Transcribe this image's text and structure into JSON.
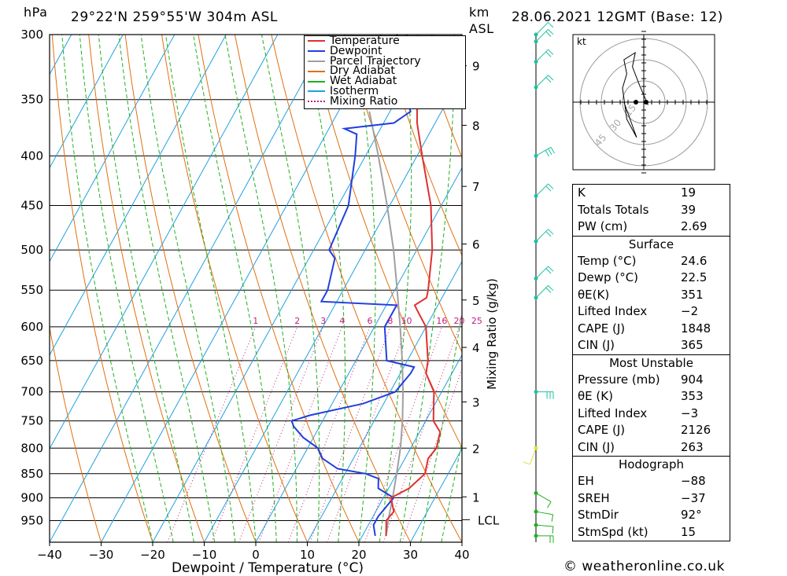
{
  "header": {
    "pressure_unit": "hPa",
    "location": "29°22'N  259°55'W  304m  ASL",
    "km_label": "km",
    "asl_label": "ASL",
    "datetime": "28.06.2021  12GMT  (Base: 12)",
    "credit": "© weatheronline.co.uk"
  },
  "chart_data": {
    "type": "skew-t",
    "xlabel": "Dewpoint / Temperature (°C)",
    "right_label": "Mixing Ratio (g/kg)",
    "x_ticks": [
      "−40",
      "−30",
      "−20",
      "−10",
      "0",
      "10",
      "20",
      "30",
      "40"
    ],
    "pressure_ticks": [
      300,
      350,
      400,
      450,
      500,
      550,
      600,
      650,
      700,
      750,
      800,
      850,
      900,
      950
    ],
    "km_ticks": [
      {
        "label": "9",
        "p": 323
      },
      {
        "label": "8",
        "p": 372
      },
      {
        "label": "7",
        "p": 430
      },
      {
        "label": "6",
        "p": 493
      },
      {
        "label": "5",
        "p": 563
      },
      {
        "label": "4",
        "p": 630
      },
      {
        "label": "3",
        "p": 717
      },
      {
        "label": "2",
        "p": 800
      },
      {
        "label": "1",
        "p": 898
      }
    ],
    "lcl_label": "LCL",
    "lcl_p": 948,
    "mixing_ratio_labels": [
      "1",
      "2",
      "3",
      "4",
      "6",
      "8",
      "10",
      "16",
      "20",
      "25"
    ],
    "mixing_ratio_values": [
      1,
      2,
      3,
      4,
      6,
      8,
      10,
      16,
      20,
      25
    ],
    "legend": [
      {
        "name": "Temperature",
        "color": "#e03030",
        "style": "solid"
      },
      {
        "name": "Dewpoint",
        "color": "#2040e0",
        "style": "solid"
      },
      {
        "name": "Parcel Trajectory",
        "color": "#a0a0a0",
        "style": "solid"
      },
      {
        "name": "Dry Adiabat",
        "color": "#e07010",
        "style": "solid"
      },
      {
        "name": "Wet Adiabat",
        "color": "#20b020",
        "style": "solid"
      },
      {
        "name": "Isotherm",
        "color": "#20a0e0",
        "style": "solid"
      },
      {
        "name": "Mixing Ratio",
        "color": "#c02080",
        "style": "dotted"
      }
    ],
    "temperature": [
      [
        985,
        24.6
      ],
      [
        950,
        23
      ],
      [
        930,
        23.5
      ],
      [
        900,
        21.5
      ],
      [
        880,
        24
      ],
      [
        850,
        25.5
      ],
      [
        820,
        24.5
      ],
      [
        800,
        25
      ],
      [
        770,
        24
      ],
      [
        750,
        21.5
      ],
      [
        700,
        18.5
      ],
      [
        670,
        15
      ],
      [
        650,
        14
      ],
      [
        600,
        10
      ],
      [
        580,
        7
      ],
      [
        570,
        5.5
      ],
      [
        560,
        7
      ],
      [
        550,
        6.5
      ],
      [
        500,
        3
      ],
      [
        450,
        -2
      ],
      [
        400,
        -9
      ],
      [
        370,
        -13.5
      ],
      [
        350,
        -16
      ],
      [
        330,
        -19
      ],
      [
        300,
        -25
      ]
    ],
    "dewpoint": [
      [
        985,
        22.5
      ],
      [
        960,
        21
      ],
      [
        940,
        21
      ],
      [
        900,
        22
      ],
      [
        880,
        18
      ],
      [
        860,
        17
      ],
      [
        850,
        14
      ],
      [
        840,
        8
      ],
      [
        820,
        4
      ],
      [
        800,
        2
      ],
      [
        780,
        -2
      ],
      [
        760,
        -5
      ],
      [
        750,
        -6
      ],
      [
        740,
        -3
      ],
      [
        720,
        6
      ],
      [
        700,
        11
      ],
      [
        670,
        12
      ],
      [
        660,
        12
      ],
      [
        650,
        6
      ],
      [
        600,
        2
      ],
      [
        570,
        2
      ],
      [
        565,
        -13
      ],
      [
        550,
        -13
      ],
      [
        510,
        -15
      ],
      [
        500,
        -17
      ],
      [
        450,
        -18
      ],
      [
        400,
        -22
      ],
      [
        380,
        -24
      ],
      [
        375,
        -27
      ],
      [
        370,
        -18
      ],
      [
        360,
        -16
      ],
      [
        350,
        -18
      ],
      [
        340,
        -18
      ],
      [
        320,
        -18
      ],
      [
        300,
        -27
      ]
    ],
    "parcel": [
      [
        985,
        24.6
      ],
      [
        948,
        23.3
      ],
      [
        900,
        21.8
      ],
      [
        850,
        20
      ],
      [
        800,
        18
      ],
      [
        750,
        15.5
      ],
      [
        700,
        12.5
      ],
      [
        650,
        9
      ],
      [
        600,
        5
      ],
      [
        550,
        0.5
      ],
      [
        500,
        -4.5
      ],
      [
        450,
        -10.5
      ],
      [
        400,
        -17.5
      ],
      [
        360,
        -24
      ]
    ],
    "wind_barbs": [
      {
        "p": 985,
        "dir_deg": 90,
        "kt": 15
      },
      {
        "p": 960,
        "dir_deg": 95,
        "kt": 10
      },
      {
        "p": 930,
        "dir_deg": 100,
        "kt": 10
      },
      {
        "p": 890,
        "dir_deg": 120,
        "kt": 5
      },
      {
        "p": 800,
        "dir_deg": 200,
        "kt": 10
      },
      {
        "p": 700,
        "dir_deg": 90,
        "kt": 25
      },
      {
        "p": 560,
        "dir_deg": 45,
        "kt": 20
      },
      {
        "p": 535,
        "dir_deg": 45,
        "kt": 20
      },
      {
        "p": 490,
        "dir_deg": 45,
        "kt": 20
      },
      {
        "p": 440,
        "dir_deg": 45,
        "kt": 20
      },
      {
        "p": 400,
        "dir_deg": 60,
        "kt": 25
      },
      {
        "p": 340,
        "dir_deg": 45,
        "kt": 20
      },
      {
        "p": 320,
        "dir_deg": 45,
        "kt": 15
      },
      {
        "p": 305,
        "dir_deg": 45,
        "kt": 15
      },
      {
        "p": 300,
        "dir_deg": 45,
        "kt": 10
      }
    ],
    "hodograph": {
      "unit_label": "kt",
      "ring_labels": [
        "15",
        "30",
        "45"
      ],
      "trace": [
        [
          3,
          -2
        ],
        [
          -3,
          12
        ],
        [
          -8,
          25
        ],
        [
          -6,
          35
        ],
        [
          -14,
          30
        ],
        [
          -12,
          20
        ],
        [
          -15,
          10
        ],
        [
          -12,
          -12
        ],
        [
          -5,
          -25
        ],
        [
          -14,
          0
        ]
      ],
      "storm_motion": [
        -15,
        0
      ]
    }
  },
  "indices": {
    "top": [
      {
        "label": "K",
        "value": "19"
      },
      {
        "label": "Totals Totals",
        "value": "39"
      },
      {
        "label": "PW (cm)",
        "value": "2.69"
      }
    ],
    "surface_title": "Surface",
    "surface": [
      {
        "label": "Temp (°C)",
        "value": "24.6"
      },
      {
        "label": "Dewp (°C)",
        "value": "22.5"
      },
      {
        "label": "θE(K)",
        "value": "351"
      },
      {
        "label": "Lifted Index",
        "value": "−2"
      },
      {
        "label": "CAPE (J)",
        "value": "1848"
      },
      {
        "label": "CIN (J)",
        "value": "365"
      }
    ],
    "mu_title": "Most Unstable",
    "mu": [
      {
        "label": "Pressure (mb)",
        "value": "904"
      },
      {
        "label": "θE (K)",
        "value": "353"
      },
      {
        "label": "Lifted Index",
        "value": "−3"
      },
      {
        "label": "CAPE (J)",
        "value": "2126"
      },
      {
        "label": "CIN (J)",
        "value": "263"
      }
    ],
    "hodo_title": "Hodograph",
    "hodo": [
      {
        "label": "EH",
        "value": "−88"
      },
      {
        "label": "SREH",
        "value": "−37"
      },
      {
        "label": "StmDir",
        "value": "92°"
      },
      {
        "label": "StmSpd (kt)",
        "value": "15"
      }
    ]
  }
}
